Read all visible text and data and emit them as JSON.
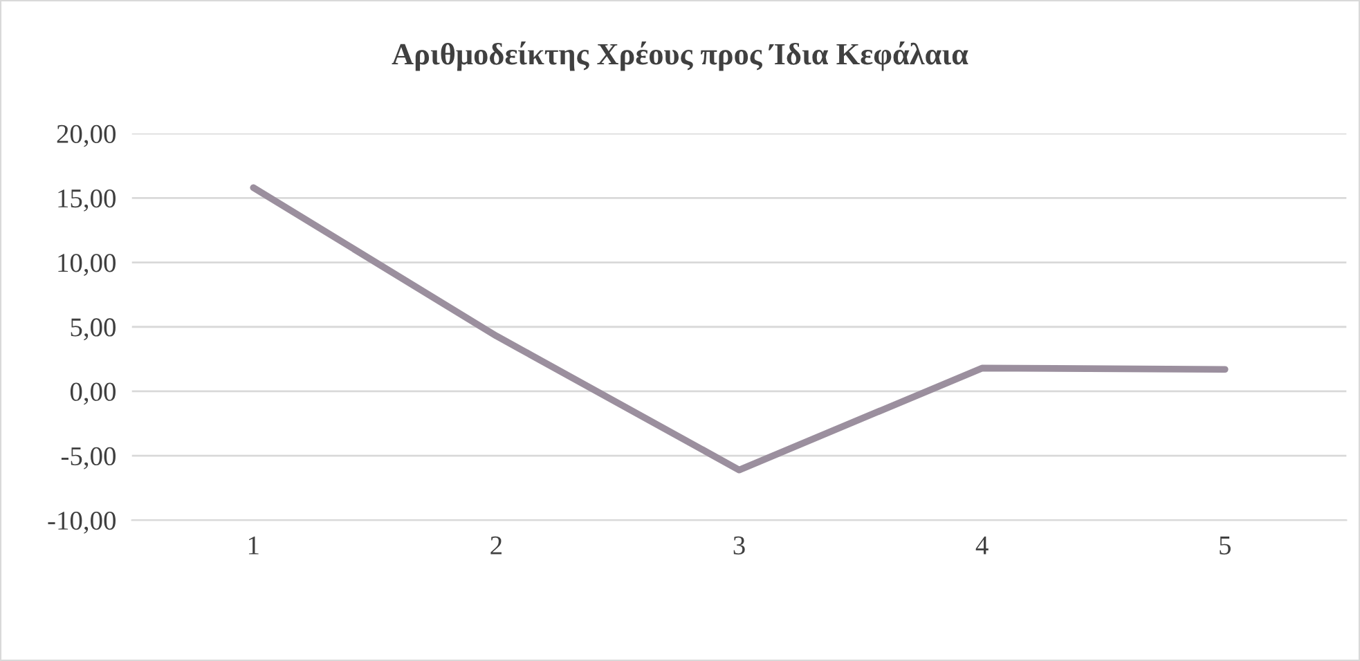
{
  "chart_data": {
    "type": "line",
    "title": "Αριθμοδείκτης Χρέους προς Ίδια Κεφάλαια",
    "categories": [
      "1",
      "2",
      "3",
      "4",
      "5"
    ],
    "series": [
      {
        "color": "#9b8f9e",
        "values": [
          15.8,
          4.3,
          -6.1,
          1.8,
          1.7
        ]
      }
    ],
    "ylim": [
      -10,
      20
    ],
    "yticks": [
      {
        "value": -10,
        "label": "-10,00"
      },
      {
        "value": -5,
        "label": "-5,00"
      },
      {
        "value": 0,
        "label": "0,00"
      },
      {
        "value": 5,
        "label": "5,00"
      },
      {
        "value": 10,
        "label": "10,00"
      },
      {
        "value": 15,
        "label": "15,00"
      },
      {
        "value": 20,
        "label": "20,00"
      }
    ],
    "grid": "y",
    "legend": false,
    "marker": "none",
    "line_style": "solid"
  }
}
